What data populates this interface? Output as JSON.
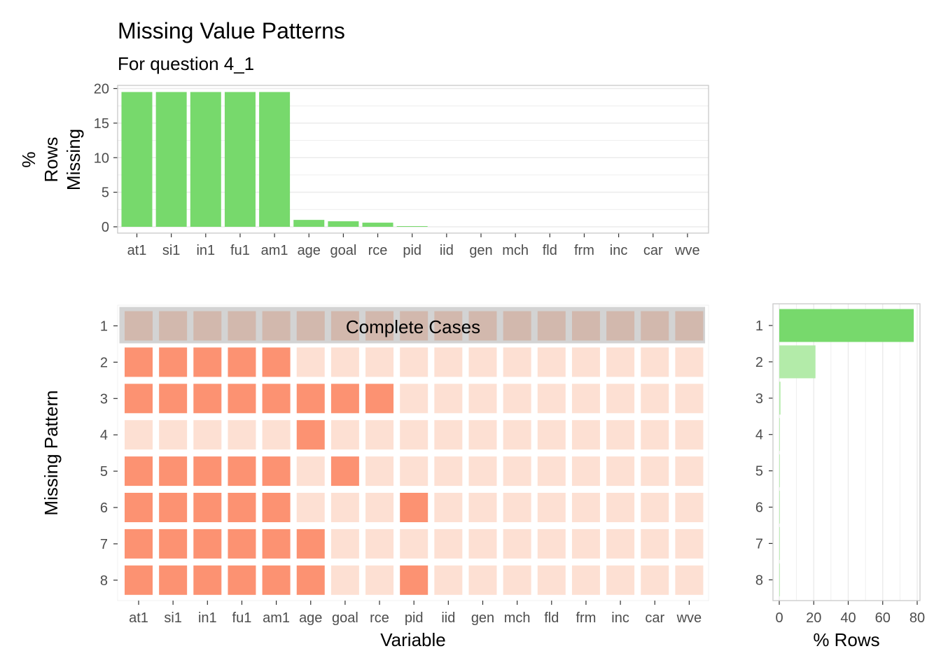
{
  "title": "Missing Value Patterns",
  "subtitle": "For question 4_1",
  "colors": {
    "bar": "#77d96c",
    "bar_light": "#b3eba9",
    "missing": "#fc9272",
    "present": "#fde0d3",
    "complete": "#d2b8ad",
    "complete_band": "#d3d3d3",
    "grid": "#ebebeb",
    "panel_border": "#c8c8c8",
    "text": "#4d4d4d"
  },
  "chart_data": [
    {
      "id": "top",
      "type": "bar",
      "categories": [
        "at1",
        "si1",
        "in1",
        "fu1",
        "am1",
        "age",
        "goal",
        "rce",
        "pid",
        "iid",
        "gen",
        "mch",
        "fld",
        "frm",
        "inc",
        "car",
        "wve"
      ],
      "values": [
        19.5,
        19.5,
        19.5,
        19.5,
        19.5,
        1.0,
        0.8,
        0.6,
        0.1,
        0,
        0,
        0,
        0,
        0,
        0,
        0,
        0
      ],
      "ylabel_lines": [
        "%",
        "Rows",
        "Missing"
      ],
      "ylim": [
        0,
        20.5
      ],
      "yticks": [
        0,
        5,
        10,
        15,
        20
      ],
      "grid": true
    },
    {
      "id": "heatmap",
      "type": "heatmap",
      "xlabel": "Variable",
      "ylabel": "Missing Pattern",
      "x": [
        "at1",
        "si1",
        "in1",
        "fu1",
        "am1",
        "age",
        "goal",
        "rce",
        "pid",
        "iid",
        "gen",
        "mch",
        "fld",
        "frm",
        "inc",
        "car",
        "wve"
      ],
      "y": [
        "1",
        "2",
        "3",
        "4",
        "5",
        "6",
        "7",
        "8"
      ],
      "highlight_row": "1",
      "highlight_label": "Complete Cases",
      "missing_matrix": [
        [
          0,
          0,
          0,
          0,
          0,
          0,
          0,
          0,
          0,
          0,
          0,
          0,
          0,
          0,
          0,
          0,
          0
        ],
        [
          1,
          1,
          1,
          1,
          1,
          0,
          0,
          0,
          0,
          0,
          0,
          0,
          0,
          0,
          0,
          0,
          0
        ],
        [
          1,
          1,
          1,
          1,
          1,
          1,
          1,
          1,
          0,
          0,
          0,
          0,
          0,
          0,
          0,
          0,
          0
        ],
        [
          0,
          0,
          0,
          0,
          0,
          1,
          0,
          0,
          0,
          0,
          0,
          0,
          0,
          0,
          0,
          0,
          0
        ],
        [
          1,
          1,
          1,
          1,
          1,
          0,
          1,
          0,
          0,
          0,
          0,
          0,
          0,
          0,
          0,
          0,
          0
        ],
        [
          1,
          1,
          1,
          1,
          1,
          0,
          0,
          0,
          1,
          0,
          0,
          0,
          0,
          0,
          0,
          0,
          0
        ],
        [
          1,
          1,
          1,
          1,
          1,
          1,
          0,
          0,
          0,
          0,
          0,
          0,
          0,
          0,
          0,
          0,
          0
        ],
        [
          1,
          1,
          1,
          1,
          1,
          1,
          0,
          0,
          1,
          0,
          0,
          0,
          0,
          0,
          0,
          0,
          0
        ]
      ]
    },
    {
      "id": "rows",
      "type": "bar",
      "orientation": "horizontal",
      "categories": [
        "1",
        "2",
        "3",
        "4",
        "5",
        "6",
        "7",
        "8"
      ],
      "values": [
        78,
        21,
        0.7,
        0.2,
        0.15,
        0.1,
        0.1,
        0.05
      ],
      "xlabel": "% Rows",
      "xlim": [
        -2,
        80
      ],
      "xticks": [
        0,
        20,
        40,
        60,
        80
      ],
      "grid": true
    }
  ]
}
